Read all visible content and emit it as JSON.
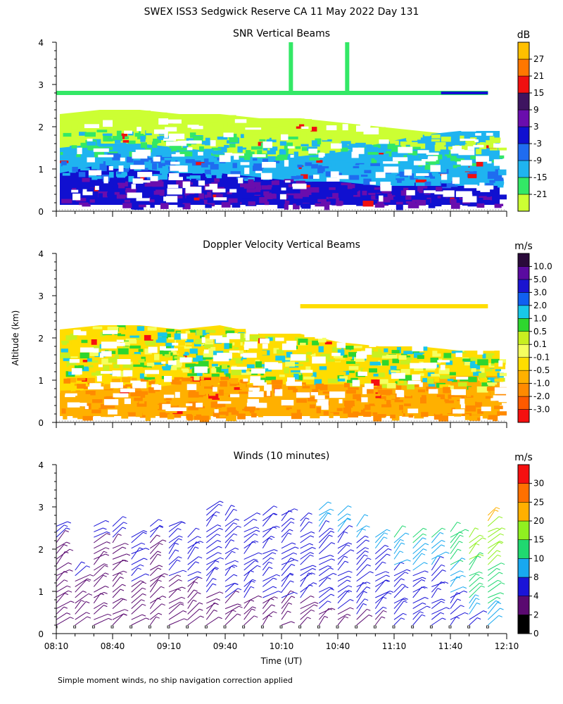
{
  "figure_title": "SWEX ISS3 Sedgwick Reserve CA  11 May 2022 Day 131",
  "y_axis_label": "Altitude (km)",
  "x_axis_label": "Time (UT)",
  "footnote": "Simple moment winds, no ship navigation correction applied",
  "chart_data": [
    {
      "type": "heatmap",
      "title": "SNR Vertical Beams",
      "units": "dB",
      "x_range": [
        "08:10",
        "12:10"
      ],
      "y_range_km": [
        0,
        4
      ],
      "y_ticks": [
        0,
        1,
        2,
        3,
        4
      ],
      "colorbar_labels": [
        "-21",
        "-15",
        "-9",
        "-3",
        "3",
        "9",
        "15",
        "21",
        "27"
      ],
      "colorbar_colors": [
        "#ccff33",
        "#33e866",
        "#1fb4f0",
        "#1f6cf0",
        "#1010d0",
        "#6a0dad",
        "#3e1460",
        "#f01010",
        "#ff7700",
        "#ffc000"
      ],
      "layers": [
        {
          "desc": "strong low-level echo",
          "alt_top_km": [
            0.9,
            1.1,
            1.0,
            0.9,
            0.9,
            0.8,
            0.7,
            0.7,
            0.6,
            0.6,
            0.6,
            0.6
          ],
          "level": "3"
        },
        {
          "desc": "moderate echo",
          "alt_top_km": [
            1.5,
            1.6,
            1.6,
            1.5,
            1.4,
            1.3,
            1.3,
            1.4,
            1.6,
            1.8,
            1.9,
            1.9
          ],
          "level": "-9"
        },
        {
          "desc": "weak echo",
          "alt_top_km": [
            2.3,
            2.4,
            2.4,
            2.3,
            2.3,
            2.2,
            2.2,
            2.1,
            2.0,
            1.9,
            1.8,
            1.8
          ],
          "level": "-21"
        }
      ],
      "features": [
        {
          "desc": "thin echo line",
          "alt_km": 2.8,
          "from": "08:10",
          "to": "12:00"
        },
        {
          "desc": "vertical streaks",
          "times": [
            "10:15",
            "10:45"
          ],
          "alt_km": [
            2.8,
            4.0
          ]
        }
      ]
    },
    {
      "type": "heatmap",
      "title": "Doppler Velocity Vertical Beams",
      "units": "m/s",
      "x_range": [
        "08:10",
        "12:10"
      ],
      "y_range_km": [
        0,
        4
      ],
      "y_ticks": [
        0,
        1,
        2,
        3,
        4
      ],
      "colorbar_labels": [
        "-3.0",
        "-2.0",
        "-1.0",
        "-0.5",
        "-0.1",
        "0.1",
        "0.5",
        "1.0",
        "2.0",
        "3.0",
        "5.0",
        "10.0"
      ],
      "colorbar_colors": [
        "#f51010",
        "#ff5a00",
        "#ff8a00",
        "#ffb000",
        "#ffdd00",
        "#f5ff60",
        "#c8f020",
        "#2ed62e",
        "#18c8e8",
        "#1060f0",
        "#1a14d0",
        "#5a0aa0",
        "#2a0a3a"
      ],
      "layers": [
        {
          "desc": "weak downdraft",
          "alt_top_km": [
            0.7,
            0.8,
            0.8,
            0.9,
            0.9,
            0.9,
            0.9,
            0.9,
            0.9,
            1.0,
            1.1,
            1.1
          ],
          "level": "-0.5"
        },
        {
          "desc": "near-zero motion",
          "alt_top_km": [
            2.2,
            2.3,
            2.3,
            2.2,
            2.3,
            2.1,
            2.1,
            1.9,
            1.8,
            1.8,
            1.7,
            1.7
          ],
          "level": "-0.1"
        }
      ],
      "features": [
        {
          "desc": "thin layer",
          "alt_km": 2.75,
          "from": "10:20",
          "to": "12:00"
        }
      ]
    },
    {
      "type": "wind_barbs",
      "title": "Winds (10 minutes)",
      "units": "m/s",
      "x_range": [
        "08:10",
        "12:10"
      ],
      "x_ticks": [
        "08:10",
        "08:40",
        "09:10",
        "09:40",
        "10:10",
        "10:40",
        "11:10",
        "11:40",
        "12:10"
      ],
      "y_range_km": [
        0,
        4
      ],
      "y_ticks": [
        0,
        1,
        2,
        3,
        4
      ],
      "colorbar_labels": [
        "0",
        "2",
        "4",
        "8",
        "10",
        "15",
        "20",
        "25",
        "30"
      ],
      "colorbar_colors": [
        "#000000",
        "#5a0a70",
        "#1a14d8",
        "#18a8f0",
        "#20d870",
        "#90f020",
        "#ffb000",
        "#ff7000",
        "#f51010"
      ],
      "profiles": [
        {
          "time": "08:10",
          "top_km": 2.6,
          "speed_ms": 3
        },
        {
          "time": "08:20",
          "top_km": 1.6,
          "speed_ms": 3
        },
        {
          "time": "08:30",
          "top_km": 2.6,
          "speed_ms": 3
        },
        {
          "time": "08:40",
          "top_km": 2.6,
          "speed_ms": 3
        },
        {
          "time": "08:50",
          "top_km": 2.3,
          "speed_ms": 4
        },
        {
          "time": "09:00",
          "top_km": 2.6,
          "speed_ms": 3
        },
        {
          "time": "09:10",
          "top_km": 2.6,
          "speed_ms": 4
        },
        {
          "time": "09:20",
          "top_km": 2.4,
          "speed_ms": 4
        },
        {
          "time": "09:30",
          "top_km": 3.0,
          "speed_ms": 5
        },
        {
          "time": "09:40",
          "top_km": 2.8,
          "speed_ms": 5
        },
        {
          "time": "09:50",
          "top_km": 2.7,
          "speed_ms": 5
        },
        {
          "time": "10:00",
          "top_km": 2.8,
          "speed_ms": 5
        },
        {
          "time": "10:10",
          "top_km": 2.8,
          "speed_ms": 5
        },
        {
          "time": "10:20",
          "top_km": 2.7,
          "speed_ms": 5
        },
        {
          "time": "10:30",
          "top_km": 3.0,
          "speed_ms": 6
        },
        {
          "time": "10:40",
          "top_km": 2.8,
          "speed_ms": 6
        },
        {
          "time": "10:50",
          "top_km": 2.6,
          "speed_ms": 6
        },
        {
          "time": "11:00",
          "top_km": 2.4,
          "speed_ms": 6
        },
        {
          "time": "11:10",
          "top_km": 2.4,
          "speed_ms": 7
        },
        {
          "time": "11:20",
          "top_km": 2.3,
          "speed_ms": 7
        },
        {
          "time": "11:30",
          "top_km": 2.4,
          "speed_ms": 7
        },
        {
          "time": "11:40",
          "top_km": 2.5,
          "speed_ms": 9
        },
        {
          "time": "11:50",
          "top_km": 2.3,
          "speed_ms": 12
        },
        {
          "time": "12:00",
          "top_km": 2.8,
          "speed_ms": 14
        }
      ]
    }
  ]
}
